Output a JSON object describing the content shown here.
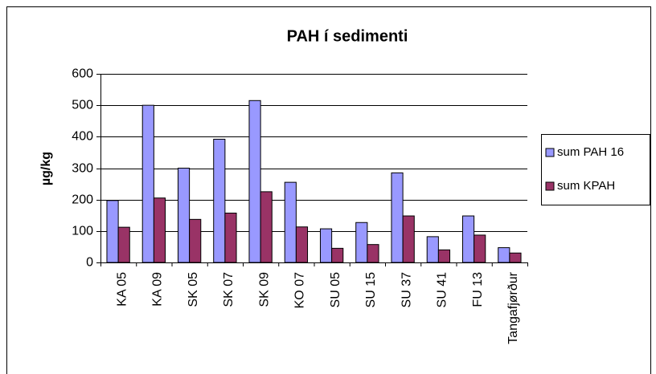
{
  "chart_data": {
    "type": "bar",
    "title": "PAH í sedimenti",
    "y_label": "µg/kg",
    "categories": [
      "KA 05",
      "KA 09",
      "SK 05",
      "SK 07",
      "SK 09",
      "KO 07",
      "SU 05",
      "SU 15",
      "SU 37",
      "SU 41",
      "FU 13",
      "Tangafjørður"
    ],
    "series": [
      {
        "name": "sum PAH 16",
        "color": "#9999ff",
        "values": [
          197,
          500,
          300,
          392,
          515,
          255,
          107,
          127,
          285,
          82,
          148,
          47
        ]
      },
      {
        "name": "sum KPAH",
        "color": "#993366",
        "values": [
          112,
          205,
          137,
          157,
          225,
          113,
          45,
          57,
          148,
          40,
          87,
          30
        ]
      }
    ],
    "ylim": [
      0,
      600
    ],
    "yticks": [
      0,
      100,
      200,
      300,
      400,
      500,
      600
    ],
    "grid": true,
    "legend": "right"
  }
}
